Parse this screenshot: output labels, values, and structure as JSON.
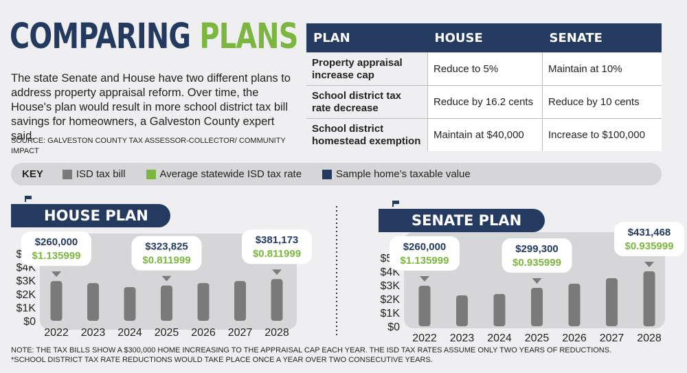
{
  "header": {
    "title_word1": "COMPARING",
    "title_word2": "PLANS",
    "intro": "The state Senate and House have two different plans to address property appraisal reform. Over time, the House's plan would result in more school district tax bill savings for homeowners, a Galveston County expert said.",
    "source": "SOURCE: GALVESTON COUNTY TAX ASSESSOR-COLLECTOR/ COMMUNITY IMPACT"
  },
  "comparison_table": {
    "headers": [
      "PLAN",
      "HOUSE",
      "SENATE"
    ],
    "rows": [
      {
        "plan": "Property appraisal increase cap",
        "house": "Reduce to 5%",
        "senate": "Maintain at 10%"
      },
      {
        "plan": "School district tax rate decrease",
        "house": "Reduce by 16.2 cents",
        "senate": "Reduce by 10 cents"
      },
      {
        "plan": "School district homestead exemption",
        "house": "Maintain at $40,000",
        "senate": "Increase to $100,000"
      }
    ]
  },
  "key": {
    "title": "KEY",
    "items": [
      {
        "label": "ISD tax bill",
        "color": "#7a7a7a"
      },
      {
        "label": "Average statewide ISD tax rate",
        "color": "#7cb640"
      },
      {
        "label": "Sample home’s taxable value",
        "color": "#243a5e"
      }
    ]
  },
  "colors": {
    "navy": "#243a5e",
    "green": "#7cb640",
    "bar_gray": "#7a7a7a"
  },
  "chart_data": [
    {
      "type": "bar",
      "title": "HOUSE PLAN",
      "icon": "capitol-icon",
      "categories": [
        "2022",
        "2023",
        "2024",
        "2025",
        "2026",
        "2027",
        "2028"
      ],
      "values": [
        2950,
        2800,
        2500,
        2620,
        2800,
        2950,
        3100
      ],
      "y_ticks": [
        "$0",
        "$1K",
        "$2K",
        "$3K",
        "$4K",
        "$5K"
      ],
      "ylim": [
        0,
        5000
      ],
      "callouts": [
        {
          "category_index": 0,
          "value": "$260,000",
          "rate": "$1.135999"
        },
        {
          "category_index": 3,
          "value": "$323,825",
          "rate": "$0.811999"
        },
        {
          "category_index": 6,
          "value": "$381,173",
          "rate": "$0.811999"
        }
      ]
    },
    {
      "type": "bar",
      "title": "SENATE PLAN",
      "icon": "capitol-icon",
      "categories": [
        "2022",
        "2023",
        "2024",
        "2025",
        "2026",
        "2027",
        "2028"
      ],
      "values": [
        2950,
        2250,
        2350,
        2800,
        3100,
        3500,
        4000
      ],
      "y_ticks": [
        "$0",
        "$1K",
        "$2K",
        "$3K",
        "$4K",
        "$5K"
      ],
      "ylim": [
        0,
        5000
      ],
      "callouts": [
        {
          "category_index": 0,
          "value": "$260,000",
          "rate": "$1.135999"
        },
        {
          "category_index": 3,
          "value": "$299,300",
          "rate": "$0.935999"
        },
        {
          "category_index": 6,
          "value": "$431,468",
          "rate": "$0.935999"
        }
      ]
    }
  ],
  "footnote": {
    "line1": "NOTE: THE TAX BILLS SHOW A $300,000 HOME INCREASING TO THE APPRAISAL CAP EACH YEAR. THE ISD TAX RATES ASSUME ONLY TWO YEARS OF REDUCTIONS.",
    "line2": "*SCHOOL DISTRICT TAX RATE REDUCTIONS WOULD TAKE PLACE ONCE A YEAR OVER TWO CONSECUTIVE YEARS."
  }
}
